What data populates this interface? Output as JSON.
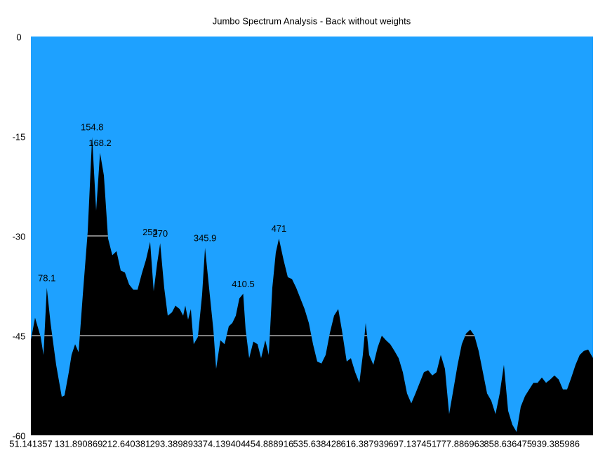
{
  "chart_data": {
    "type": "area",
    "title": "Jumbo Spectrum Analysis - Back without weights",
    "background_color": "#1ea1ff",
    "grid": true,
    "grid_color": "#ffffff",
    "xlim": [
      51.141357,
      1002.7
    ],
    "ylim": [
      -60,
      0
    ],
    "yticks": [
      0,
      -15,
      -30,
      -45,
      -60
    ],
    "xticks": [
      51.141357,
      131.890869,
      212.640381,
      293.389893,
      374.139404,
      454.888916,
      535.638428,
      616.387939,
      697.137451,
      777.886963,
      858.636475,
      939.385986
    ],
    "annotations": [
      {
        "text": "78.1",
        "x": 78.1
      },
      {
        "text": "154.8",
        "x": 154.8
      },
      {
        "text": "168.2",
        "x": 168.2
      },
      {
        "text": "253",
        "x": 253
      },
      {
        "text": "270",
        "x": 270
      },
      {
        "text": "345.9",
        "x": 345.9
      },
      {
        "text": "410.5",
        "x": 410.5
      },
      {
        "text": "471",
        "x": 471
      }
    ],
    "series": [
      {
        "color": "#000000",
        "x": [
          51.1,
          58.2,
          67.7,
          72.5,
          78.1,
          84.4,
          93.9,
          103.4,
          108.1,
          115.3,
          120.0,
          126.0,
          131.9,
          139.0,
          147.3,
          154.8,
          161.6,
          168.2,
          174.7,
          181.8,
          189.0,
          196.1,
          203.2,
          210.3,
          217.4,
          224.5,
          231.7,
          238.8,
          245.9,
          253,
          259.0,
          264.9,
          270,
          276.8,
          282.8,
          289.9,
          295.8,
          303.0,
          308.9,
          312.5,
          317.2,
          321.9,
          326.7,
          333.8,
          340.9,
          345.9,
          354.0,
          360.0,
          364.7,
          371.9,
          379.0,
          386.1,
          392.1,
          398.0,
          404.0,
          410.5,
          414.6,
          420.6,
          427.7,
          434.8,
          440.8,
          447.9,
          453.8,
          459.8,
          465.7,
          471,
          478.8,
          486.0,
          493.1,
          500.2,
          507.3,
          514.4,
          521.6,
          528.7,
          535.8,
          543.0,
          550.1,
          557.2,
          564.3,
          571.4,
          577.4,
          585.7,
          592.8,
          600.0,
          607.1,
          613.0,
          617.8,
          623.7,
          630.8,
          638.0,
          645.1,
          652.2,
          659.4,
          666.5,
          673.6,
          680.7,
          687.8,
          695.0,
          702.1,
          709.2,
          716.4,
          723.5,
          730.6,
          737.7,
          744.9,
          752.0,
          759.1,
          766.3,
          773.4,
          780.5,
          787.7,
          794.8,
          801.9,
          809.0,
          816.2,
          823.3,
          830.4,
          837.6,
          844.7,
          851.8,
          858.9,
          866.1,
          873.2,
          880.3,
          887.5,
          894.6,
          901.7,
          908.8,
          916.0,
          923.1,
          930.2,
          937.3,
          944.5,
          951.6,
          958.7,
          965.9,
          973.0,
          980.1,
          987.2,
          994.4,
          1002.7
        ],
        "values": [
          -45.7,
          -42.3,
          -45.2,
          -47.9,
          -37.8,
          -43.1,
          -49.4,
          -54.2,
          -54.0,
          -50.5,
          -47.9,
          -46.3,
          -47.5,
          -38.9,
          -29.4,
          -15.1,
          -26.2,
          -17.5,
          -20.9,
          -30.4,
          -32.9,
          -32.3,
          -35.2,
          -35.5,
          -37.3,
          -38.1,
          -38.1,
          -35.7,
          -33.6,
          -30.9,
          -38.3,
          -34.1,
          -31.1,
          -37.8,
          -42.0,
          -41.5,
          -40.5,
          -41.0,
          -42.0,
          -40.5,
          -42.6,
          -41.0,
          -46.3,
          -45.2,
          -38.9,
          -31.8,
          -38.9,
          -44.1,
          -50.0,
          -45.7,
          -46.3,
          -43.6,
          -43.1,
          -42.0,
          -39.4,
          -38.7,
          -44.1,
          -48.4,
          -45.9,
          -46.3,
          -48.4,
          -45.7,
          -47.9,
          -37.8,
          -32.5,
          -30.4,
          -33.6,
          -36.2,
          -36.5,
          -37.8,
          -39.4,
          -41.0,
          -43.1,
          -46.3,
          -48.9,
          -49.2,
          -47.9,
          -44.6,
          -42.0,
          -41.0,
          -44.1,
          -48.9,
          -48.4,
          -50.5,
          -52.1,
          -47.9,
          -43.1,
          -47.9,
          -49.4,
          -46.8,
          -45.0,
          -45.7,
          -46.3,
          -47.3,
          -48.4,
          -50.5,
          -53.7,
          -55.2,
          -53.7,
          -52.1,
          -50.5,
          -50.2,
          -51.0,
          -50.5,
          -47.9,
          -50.0,
          -56.8,
          -53.1,
          -49.4,
          -46.3,
          -44.7,
          -44.1,
          -45.0,
          -47.3,
          -50.5,
          -53.7,
          -54.8,
          -56.8,
          -53.7,
          -49.4,
          -56.3,
          -58.4,
          -59.5,
          -55.7,
          -54.1,
          -53.1,
          -52.1,
          -52.1,
          -51.3,
          -52.1,
          -51.6,
          -51.0,
          -51.6,
          -53.1,
          -53.1,
          -51.3,
          -49.4,
          -47.9,
          -47.3,
          -47.1,
          -48.4
        ]
      }
    ]
  }
}
